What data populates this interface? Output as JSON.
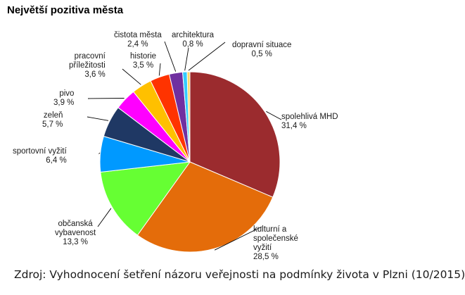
{
  "title": "Největší pozitiva města",
  "source": "Zdroj: Vyhodnocení šetření názoru veřejnosti na podmínky života v Plzni (10/2015)",
  "chart_data": {
    "type": "pie",
    "title": "Největší pozitiva města",
    "start": "12 o'clock, clockwise",
    "slices": [
      {
        "label": "spolehlivá MHD",
        "value": 31.4,
        "value_label": "31,4 %",
        "color": "#9b2b2e"
      },
      {
        "label": "kulturní a\nspolečenské\nvyžití",
        "value": 28.5,
        "value_label": "28,5 %",
        "color": "#e46c0a"
      },
      {
        "label": "občanská\nvybavenost",
        "value": 13.3,
        "value_label": "13,3 %",
        "color": "#66ff33"
      },
      {
        "label": "sportovní vyžití",
        "value": 6.4,
        "value_label": "6,4 %",
        "color": "#0099ff"
      },
      {
        "label": "zeleň",
        "value": 5.7,
        "value_label": "5,7 %",
        "color": "#1f3864"
      },
      {
        "label": "pivo",
        "value": 3.9,
        "value_label": "3,9 %",
        "color": "#ff00ff"
      },
      {
        "label": "pracovní\npříležitosti",
        "value": 3.6,
        "value_label": "3,6 %",
        "color": "#ffc000"
      },
      {
        "label": "historie",
        "value": 3.5,
        "value_label": "3,5 %",
        "color": "#ff3300"
      },
      {
        "label": "čistota města",
        "value": 2.4,
        "value_label": "2,4 %",
        "color": "#7030a0"
      },
      {
        "label": "architektura",
        "value": 0.8,
        "value_label": "0,8 %",
        "color": "#33ccff"
      },
      {
        "label": "dopravní situace",
        "value": 0.5,
        "value_label": "0,5 %",
        "color": "#ffd966"
      }
    ]
  }
}
